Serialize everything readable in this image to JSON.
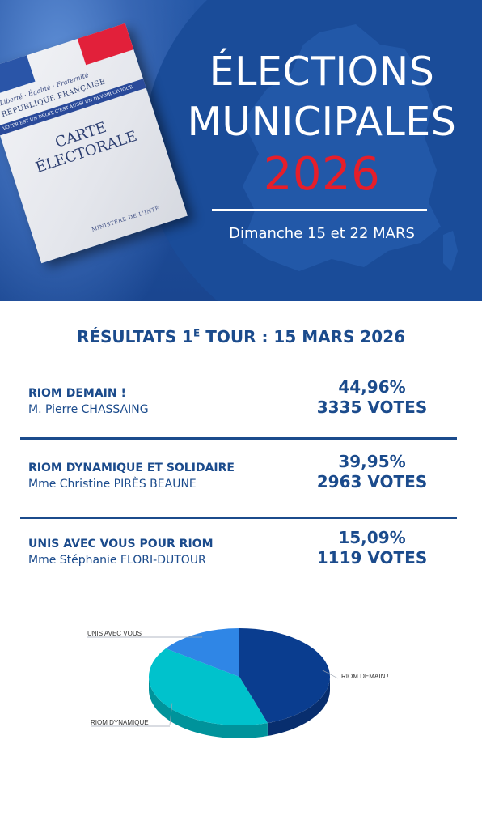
{
  "header": {
    "card": {
      "motto": "Liberté · Égalité · Fraternité",
      "republic": "RÉPUBLIQUE FRANÇAISE",
      "band": "VOTER EST UN DROIT, C'EST AUSSI UN DEVOIR CIVIQUE",
      "title_line1": "CARTE",
      "title_line2": "ÉLECTORALE",
      "ministry": "MINISTÈRE DE L'INTÉ"
    },
    "title_line1": "ÉLECTIONS",
    "title_line2": "MUNICIPALES",
    "year": "2026",
    "date": "Dimanche 15 et 22 MARS",
    "colors": {
      "blue": "#1a4c99",
      "year_red": "#e61e2a"
    }
  },
  "results": {
    "title_prefix": "RÉSULTATS 1",
    "title_sup": "E",
    "title_suffix": " TOUR : 15 MARS 2026",
    "lists": [
      {
        "name": "RIOM DEMAIN !",
        "head": "M. Pierre CHASSAING",
        "percent": "44,96%",
        "votes": "3335 VOTES"
      },
      {
        "name": "RIOM DYNAMIQUE ET SOLIDAIRE",
        "head": "Mme Christine PIRÈS BEAUNE",
        "percent": "39,95%",
        "votes": "2963 VOTES"
      },
      {
        "name": "UNIS AVEC VOUS POUR RIOM",
        "head": "Mme Stéphanie FLORI-DUTOUR",
        "percent": "15,09%",
        "votes": "1119 VOTES"
      }
    ],
    "text_color": "#1b4b8c"
  },
  "chart_data": {
    "type": "pie",
    "title": "",
    "slices": [
      {
        "label": "RIOM DEMAIN !",
        "value": 44.96,
        "color": "#0a3d8f",
        "side": "#082e6e"
      },
      {
        "label": "RIOM DYNAMIQUE",
        "value": 39.95,
        "color": "#00c2cc",
        "side": "#00939b"
      },
      {
        "label": "UNIS AVEC VOUS",
        "value": 15.09,
        "color": "#2f86e6",
        "side": "#2165b3"
      }
    ],
    "start_angle": "top",
    "direction": "clockwise",
    "style": "3d"
  }
}
